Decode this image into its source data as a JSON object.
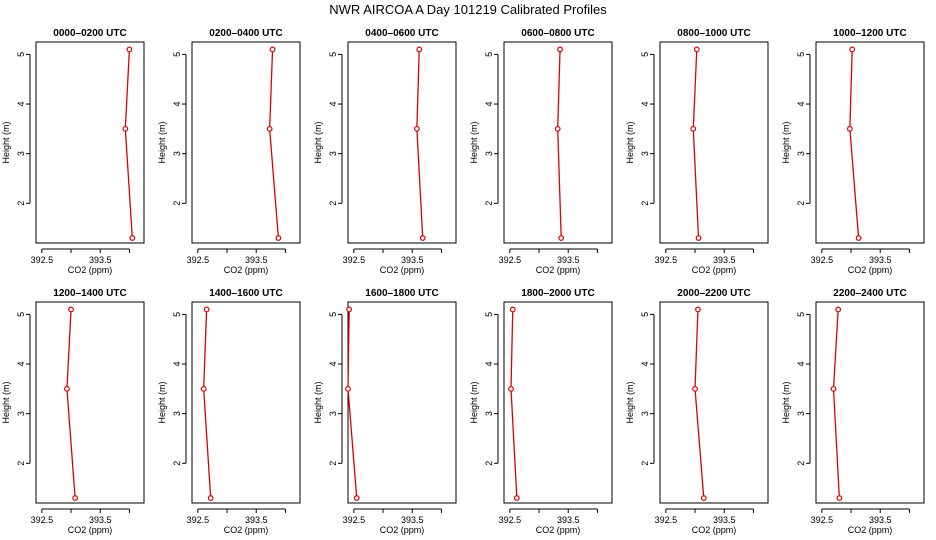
{
  "title": "NWR AIRCOA A  Day 101219  Calibrated Profiles",
  "colors": {
    "series": "#dd0000",
    "axis": "#000000",
    "background": "#ffffff"
  },
  "chart_data": {
    "type": "line",
    "title": "NWR AIRCOA A  Day 101219  Calibrated Profiles",
    "xlabel": "CO2 (ppm)",
    "ylabel": "Height (m)",
    "xlim": [
      392.4,
      394.25
    ],
    "ylim": [
      1.2,
      5.25
    ],
    "xticks": [
      392.5,
      393.0,
      393.5,
      394.0
    ],
    "xtick_labels": [
      "392.5",
      "",
      "393.5",
      ""
    ],
    "yticks": [
      2,
      3,
      4,
      5
    ],
    "yticks_labels": [
      "2",
      "3",
      "4",
      "5"
    ],
    "heights": [
      5.1,
      3.5,
      1.3
    ],
    "panels": [
      {
        "label": "0000–0200 UTC",
        "co2": [
          394.0,
          393.93,
          394.05
        ]
      },
      {
        "label": "0200–0400 UTC",
        "co2": [
          393.78,
          393.73,
          393.88
        ]
      },
      {
        "label": "0400–0600 UTC",
        "co2": [
          393.62,
          393.58,
          393.68
        ]
      },
      {
        "label": "0600–0800 UTC",
        "co2": [
          393.36,
          393.32,
          393.38
        ]
      },
      {
        "label": "0800–1000 UTC",
        "co2": [
          393.03,
          392.97,
          393.06
        ]
      },
      {
        "label": "1000–1200 UTC",
        "co2": [
          393.02,
          392.98,
          393.13
        ]
      },
      {
        "label": "1200–1400 UTC",
        "co2": [
          393.0,
          392.93,
          393.07
        ]
      },
      {
        "label": "1400–1600 UTC",
        "co2": [
          392.65,
          392.6,
          392.72
        ]
      },
      {
        "label": "1600–1800 UTC",
        "co2": [
          392.42,
          392.4,
          392.55
        ]
      },
      {
        "label": "1800–2000 UTC",
        "co2": [
          392.55,
          392.52,
          392.62
        ]
      },
      {
        "label": "2000–2200 UTC",
        "co2": [
          393.05,
          393.0,
          393.15
        ]
      },
      {
        "label": "2200–2400 UTC",
        "co2": [
          392.78,
          392.7,
          392.8
        ]
      }
    ]
  }
}
